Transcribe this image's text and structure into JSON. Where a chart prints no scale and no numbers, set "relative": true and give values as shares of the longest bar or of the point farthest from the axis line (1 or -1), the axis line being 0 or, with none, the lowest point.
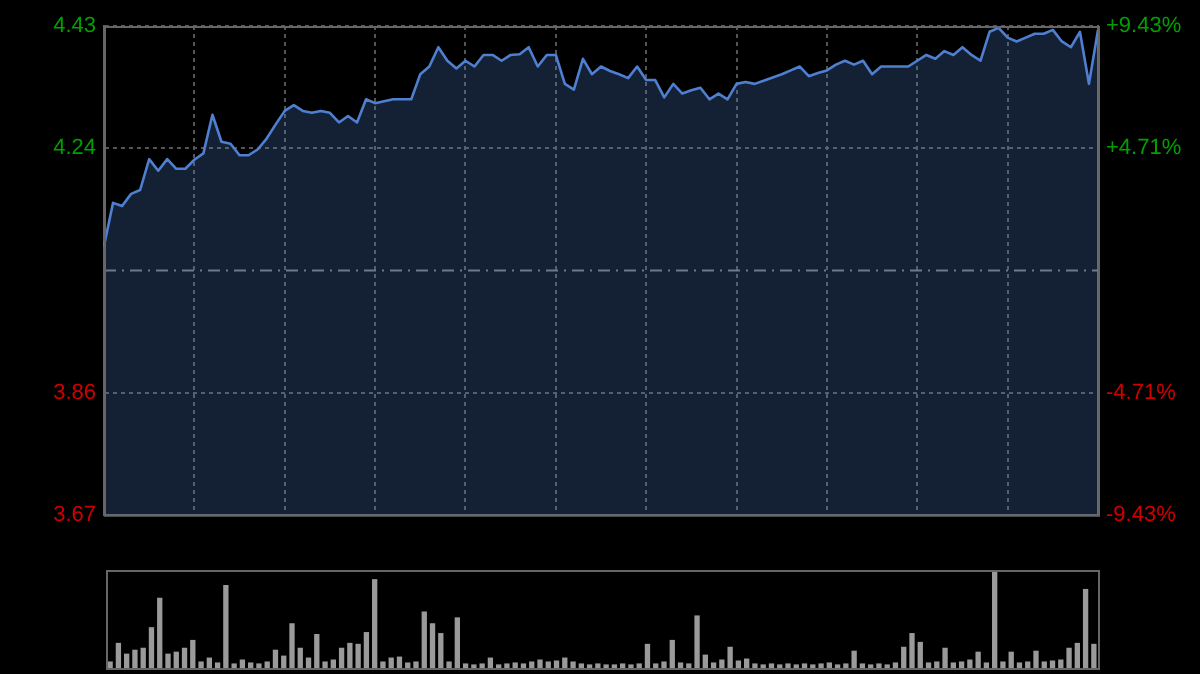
{
  "chart_data": [
    {
      "type": "area",
      "categories": [
        null,
        null,
        null,
        null,
        null,
        null,
        null,
        null,
        null,
        null,
        null,
        null,
        null,
        null,
        null,
        null,
        null,
        null,
        null,
        null,
        null,
        null,
        null,
        null,
        null,
        null,
        null,
        null,
        null,
        null,
        null,
        null,
        null,
        null,
        null,
        null,
        null,
        null,
        null,
        null,
        null,
        null,
        null,
        null,
        null,
        null,
        null,
        null,
        null,
        null,
        null,
        null,
        null,
        null,
        null,
        null,
        null,
        null,
        null,
        null,
        null,
        null,
        null,
        null,
        null,
        null,
        null,
        null,
        null,
        null,
        null,
        null,
        null,
        null,
        null,
        null,
        null,
        null,
        null,
        null,
        null,
        null,
        null,
        null,
        null,
        null,
        null,
        null,
        null,
        null,
        null,
        null,
        null,
        null,
        null,
        null,
        null,
        null,
        null,
        null,
        null,
        null,
        null,
        null,
        null,
        null,
        null,
        null,
        null,
        null,
        null
      ],
      "ylim": [
        3.67,
        4.43
      ],
      "yticks": [
        3.67,
        3.86,
        4.24,
        4.43
      ],
      "y2lim": [
        -9.43,
        9.43
      ],
      "y2ticks": [
        {
          "value": -9.43,
          "label": "-9.43%"
        },
        {
          "value": -4.71,
          "label": "-4.71%"
        },
        {
          "value": 4.71,
          "label": "+4.71%"
        },
        {
          "value": 9.43,
          "label": "+9.43%"
        }
      ],
      "ref_lines": [
        {
          "axis": "y",
          "value": 4.05,
          "color": "#777777",
          "line_style": "dashed"
        }
      ],
      "grid": true,
      "tick_labels": "y",
      "series": [
        {
          "color": "#4f7fd0",
          "values": [
            4.088,
            4.155,
            4.15,
            4.169,
            4.175,
            4.223,
            4.205,
            4.223,
            4.208,
            4.208,
            4.222,
            4.232,
            4.292,
            4.25,
            4.247,
            4.229,
            4.229,
            4.238,
            4.255,
            4.277,
            4.298,
            4.307,
            4.298,
            4.295,
            4.298,
            4.295,
            4.28,
            4.29,
            4.28,
            4.316,
            4.31,
            4.313,
            4.316,
            4.316,
            4.316,
            4.355,
            4.367,
            4.397,
            4.376,
            4.364,
            4.376,
            4.367,
            4.385,
            4.385,
            4.376,
            4.385,
            4.386,
            4.397,
            4.367,
            4.385,
            4.385,
            4.34,
            4.331,
            4.379,
            4.355,
            4.367,
            4.36,
            4.355,
            4.349,
            4.367,
            4.346,
            4.346,
            4.319,
            4.34,
            4.325,
            4.33,
            4.334,
            4.316,
            4.325,
            4.316,
            4.34,
            4.343,
            4.34,
            4.345,
            4.35,
            4.355,
            4.361,
            4.367,
            4.352,
            4.357,
            4.361,
            4.37,
            4.376,
            4.37,
            4.376,
            4.355,
            4.367,
            4.367,
            4.367,
            4.367,
            4.376,
            4.385,
            4.379,
            4.391,
            4.385,
            4.397,
            4.385,
            4.376,
            4.421,
            4.427,
            4.412,
            4.406,
            4.412,
            4.418,
            4.418,
            4.424,
            4.406,
            4.397,
            4.421,
            4.34,
            4.424
          ]
        }
      ]
    },
    {
      "type": "bar",
      "relative": true,
      "color": "#9a9a9a",
      "tick_labels": false,
      "categories": [
        null,
        null,
        null,
        null,
        null,
        null,
        null,
        null,
        null,
        null,
        null,
        null,
        null,
        null,
        null,
        null,
        null,
        null,
        null,
        null,
        null,
        null,
        null,
        null,
        null,
        null,
        null,
        null,
        null,
        null,
        null,
        null,
        null,
        null,
        null,
        null,
        null,
        null,
        null,
        null,
        null,
        null,
        null,
        null,
        null,
        null,
        null,
        null,
        null,
        null,
        null,
        null,
        null,
        null,
        null,
        null,
        null,
        null,
        null,
        null,
        null,
        null,
        null,
        null,
        null,
        null,
        null,
        null,
        null,
        null,
        null,
        null,
        null,
        null,
        null,
        null,
        null,
        null,
        null,
        null,
        null,
        null,
        null,
        null,
        null,
        null,
        null,
        null,
        null,
        null,
        null,
        null,
        null,
        null,
        null,
        null,
        null,
        null,
        null,
        null,
        null,
        null,
        null,
        null,
        null,
        null,
        null,
        null,
        null,
        null,
        null,
        null,
        null,
        null,
        null,
        null,
        null,
        null,
        null,
        null
      ],
      "values": [
        0.06,
        0.25,
        0.14,
        0.18,
        0.2,
        0.41,
        0.71,
        0.14,
        0.16,
        0.2,
        0.28,
        0.06,
        0.1,
        0.05,
        0.84,
        0.04,
        0.08,
        0.05,
        0.04,
        0.06,
        0.18,
        0.12,
        0.45,
        0.2,
        0.1,
        0.34,
        0.06,
        0.08,
        0.2,
        0.25,
        0.24,
        0.36,
        0.9,
        0.06,
        0.1,
        0.11,
        0.05,
        0.06,
        0.57,
        0.45,
        0.35,
        0.06,
        0.51,
        0.04,
        0.03,
        0.04,
        0.1,
        0.03,
        0.04,
        0.05,
        0.04,
        0.06,
        0.08,
        0.06,
        0.07,
        0.1,
        0.06,
        0.04,
        0.03,
        0.04,
        0.03,
        0.03,
        0.04,
        0.03,
        0.04,
        0.24,
        0.04,
        0.06,
        0.28,
        0.05,
        0.04,
        0.53,
        0.13,
        0.05,
        0.08,
        0.21,
        0.07,
        0.09,
        0.04,
        0.03,
        0.04,
        0.03,
        0.04,
        0.03,
        0.04,
        0.03,
        0.04,
        0.05,
        0.03,
        0.04,
        0.17,
        0.04,
        0.03,
        0.04,
        0.03,
        0.05,
        0.21,
        0.35,
        0.26,
        0.05,
        0.06,
        0.2,
        0.05,
        0.06,
        0.08,
        0.16,
        0.05,
        1,
        0.06,
        0.16,
        0.05,
        0.06,
        0.17,
        0.06,
        0.07,
        0.08,
        0.2,
        0.25,
        0.8,
        0.24
      ]
    }
  ]
}
